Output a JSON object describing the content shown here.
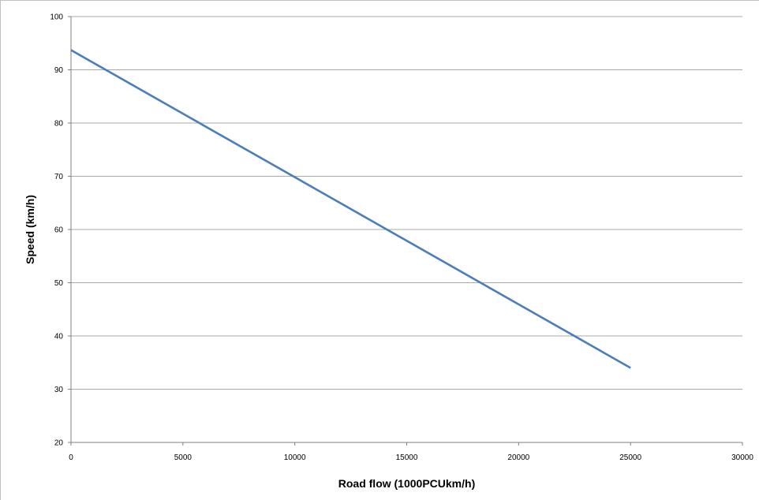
{
  "chart_data": {
    "type": "line",
    "title": "",
    "xlabel": "Road flow (1000PCUkm/h)",
    "ylabel": "Speed (km/h)",
    "xlim": [
      0,
      30000
    ],
    "ylim": [
      20,
      100
    ],
    "x_ticks": [
      0,
      5000,
      10000,
      15000,
      20000,
      25000,
      30000
    ],
    "y_ticks": [
      20,
      30,
      40,
      50,
      60,
      70,
      80,
      90,
      100
    ],
    "grid": {
      "horizontal": true,
      "vertical": false
    },
    "legend": "none",
    "series": [
      {
        "color": "#4a7ebb",
        "x": [
          0,
          25000
        ],
        "y": [
          93.7,
          34
        ]
      }
    ]
  }
}
